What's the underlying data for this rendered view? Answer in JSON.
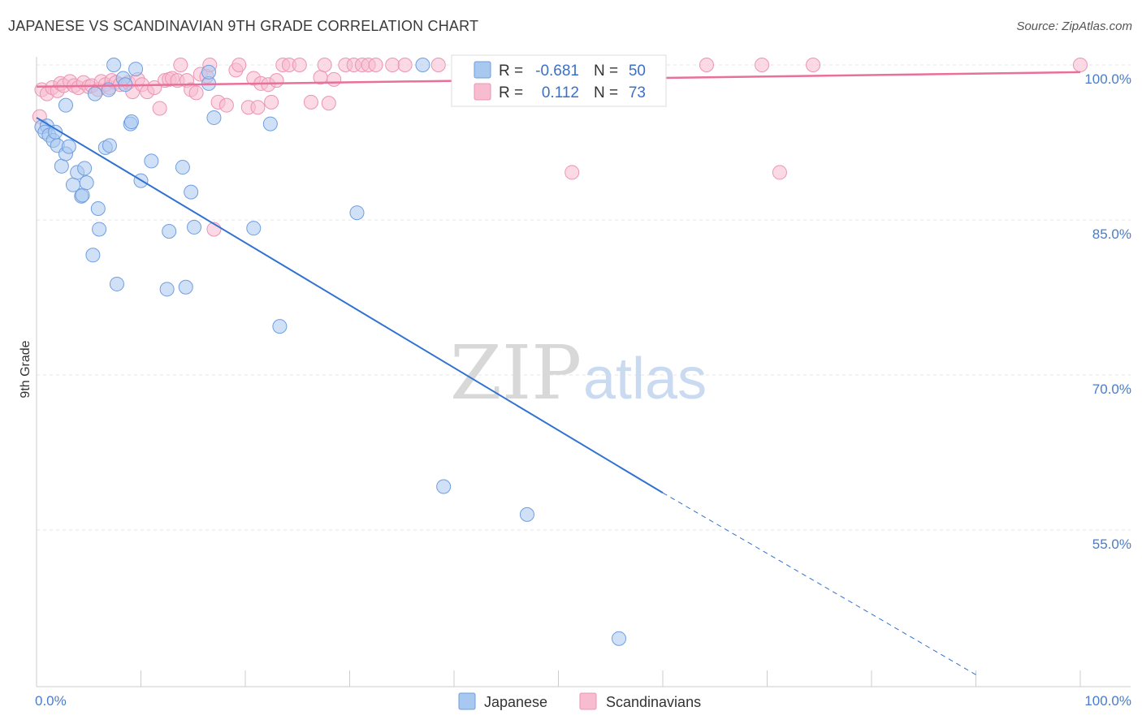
{
  "title": "JAPANESE VS SCANDINAVIAN 9TH GRADE CORRELATION CHART",
  "source": "Source: ZipAtlas.com",
  "colors": {
    "japanese_fill": "#a9c8f0",
    "japanese_stroke": "#6f9ee0",
    "japanese_line": "#2f72d0",
    "scandinavian_fill": "#f8bcd0",
    "scandinavian_stroke": "#ec94b2",
    "scandinavian_line": "#e8709a",
    "tick_text": "#4a7cc7",
    "grid": "#e6e6e6"
  },
  "stats_box": {
    "rows": [
      {
        "series": "Japanese",
        "r_label": "R =",
        "r_value": "-0.681",
        "n_label": "N =",
        "n_value": "50"
      },
      {
        "series": "Scandinavians",
        "r_label": "R =",
        "r_value": "0.112",
        "n_label": "N =",
        "n_value": "73"
      }
    ]
  },
  "watermark": {
    "part1": "ZIP",
    "part2": "atlas"
  },
  "chart_data": {
    "type": "scatter",
    "title": "JAPANESE VS SCANDINAVIAN 9TH GRADE CORRELATION CHART",
    "xlabel": "",
    "ylabel": "9th Grade",
    "xlim": [
      0,
      100
    ],
    "ylim": [
      40,
      101
    ],
    "x_tick_labels": [
      "0.0%",
      "100.0%"
    ],
    "y_ticks": [
      {
        "value": 100,
        "label": "100.0%"
      },
      {
        "value": 85,
        "label": "85.0%"
      },
      {
        "value": 70,
        "label": "70.0%"
      },
      {
        "value": 55,
        "label": "55.0%"
      }
    ],
    "grid": true,
    "legend_position": "bottom",
    "series": [
      {
        "name": "Japanese",
        "r": -0.681,
        "n": 50,
        "trend": {
          "x0": 0,
          "y0": 94.9,
          "x1": 60,
          "y1": 58.6,
          "dashed_to_x": 90,
          "dashed_to_y": 41.0
        },
        "points": [
          [
            0.5,
            94.0
          ],
          [
            1.0,
            94.1
          ],
          [
            0.8,
            93.5
          ],
          [
            1.2,
            93.2
          ],
          [
            1.6,
            92.7
          ],
          [
            1.8,
            93.5
          ],
          [
            2.0,
            92.2
          ],
          [
            2.4,
            90.2
          ],
          [
            2.8,
            91.4
          ],
          [
            3.1,
            92.1
          ],
          [
            3.5,
            88.4
          ],
          [
            3.9,
            89.6
          ],
          [
            4.3,
            87.3
          ],
          [
            4.4,
            87.4
          ],
          [
            4.6,
            90.0
          ],
          [
            4.8,
            88.6
          ],
          [
            2.8,
            96.1
          ],
          [
            5.6,
            97.2
          ],
          [
            5.9,
            86.1
          ],
          [
            6.0,
            84.1
          ],
          [
            5.4,
            81.6
          ],
          [
            6.6,
            92.0
          ],
          [
            7.0,
            92.2
          ],
          [
            6.9,
            97.6
          ],
          [
            7.4,
            100.0
          ],
          [
            7.7,
            78.8
          ],
          [
            8.3,
            98.7
          ],
          [
            8.5,
            98.1
          ],
          [
            9.0,
            94.3
          ],
          [
            9.1,
            94.5
          ],
          [
            9.5,
            99.6
          ],
          [
            10.0,
            88.8
          ],
          [
            11.0,
            90.7
          ],
          [
            12.5,
            78.3
          ],
          [
            12.7,
            83.9
          ],
          [
            14.0,
            90.1
          ],
          [
            14.3,
            78.5
          ],
          [
            14.8,
            87.7
          ],
          [
            15.1,
            84.3
          ],
          [
            16.5,
            98.2
          ],
          [
            16.5,
            99.3
          ],
          [
            17.0,
            94.9
          ],
          [
            20.8,
            84.2
          ],
          [
            22.4,
            94.3
          ],
          [
            23.3,
            74.7
          ],
          [
            30.7,
            85.7
          ],
          [
            37.0,
            100.0
          ],
          [
            39.0,
            59.2
          ],
          [
            47.0,
            56.5
          ],
          [
            55.8,
            44.5
          ]
        ]
      },
      {
        "name": "Scandinavians",
        "r": 0.112,
        "n": 73,
        "trend": {
          "x0": 0,
          "y0": 97.9,
          "x1": 100,
          "y1": 99.3
        },
        "points": [
          [
            0.3,
            95.0
          ],
          [
            0.5,
            97.6
          ],
          [
            1.0,
            97.2
          ],
          [
            1.5,
            97.8
          ],
          [
            2.0,
            97.5
          ],
          [
            2.3,
            98.2
          ],
          [
            2.6,
            98.0
          ],
          [
            3.2,
            98.4
          ],
          [
            3.6,
            98.0
          ],
          [
            4.0,
            97.8
          ],
          [
            4.5,
            98.3
          ],
          [
            5.0,
            97.9
          ],
          [
            5.3,
            98.0
          ],
          [
            5.9,
            97.6
          ],
          [
            6.2,
            98.4
          ],
          [
            6.6,
            98.1
          ],
          [
            7.0,
            97.8
          ],
          [
            7.2,
            98.5
          ],
          [
            7.6,
            98.3
          ],
          [
            8.0,
            98.1
          ],
          [
            8.8,
            98.3
          ],
          [
            9.2,
            97.4
          ],
          [
            9.7,
            98.6
          ],
          [
            10.1,
            98.1
          ],
          [
            10.6,
            97.4
          ],
          [
            11.3,
            97.8
          ],
          [
            11.8,
            95.8
          ],
          [
            12.3,
            98.5
          ],
          [
            12.7,
            98.6
          ],
          [
            13.0,
            98.7
          ],
          [
            13.5,
            98.5
          ],
          [
            13.8,
            100.0
          ],
          [
            14.4,
            98.5
          ],
          [
            14.8,
            97.6
          ],
          [
            15.3,
            97.3
          ],
          [
            15.7,
            99.1
          ],
          [
            16.3,
            98.9
          ],
          [
            16.6,
            100.0
          ],
          [
            17.0,
            84.1
          ],
          [
            17.4,
            96.4
          ],
          [
            18.2,
            96.1
          ],
          [
            19.1,
            99.5
          ],
          [
            19.4,
            100.0
          ],
          [
            20.3,
            95.9
          ],
          [
            20.8,
            98.7
          ],
          [
            21.2,
            95.9
          ],
          [
            21.5,
            98.2
          ],
          [
            22.2,
            98.1
          ],
          [
            22.5,
            96.4
          ],
          [
            23.0,
            98.5
          ],
          [
            23.6,
            100.0
          ],
          [
            24.2,
            100.0
          ],
          [
            25.2,
            100.0
          ],
          [
            26.3,
            96.4
          ],
          [
            27.2,
            98.8
          ],
          [
            27.6,
            100.0
          ],
          [
            28.0,
            96.3
          ],
          [
            28.5,
            98.6
          ],
          [
            29.6,
            100.0
          ],
          [
            30.4,
            100.0
          ],
          [
            31.2,
            100.0
          ],
          [
            31.8,
            100.0
          ],
          [
            32.5,
            100.0
          ],
          [
            34.1,
            100.0
          ],
          [
            35.3,
            100.0
          ],
          [
            38.5,
            100.0
          ],
          [
            42.3,
            100.0
          ],
          [
            51.3,
            89.6
          ],
          [
            64.2,
            100.0
          ],
          [
            69.5,
            100.0
          ],
          [
            71.2,
            89.6
          ],
          [
            74.4,
            100.0
          ],
          [
            100.0,
            100.0
          ]
        ]
      }
    ]
  }
}
